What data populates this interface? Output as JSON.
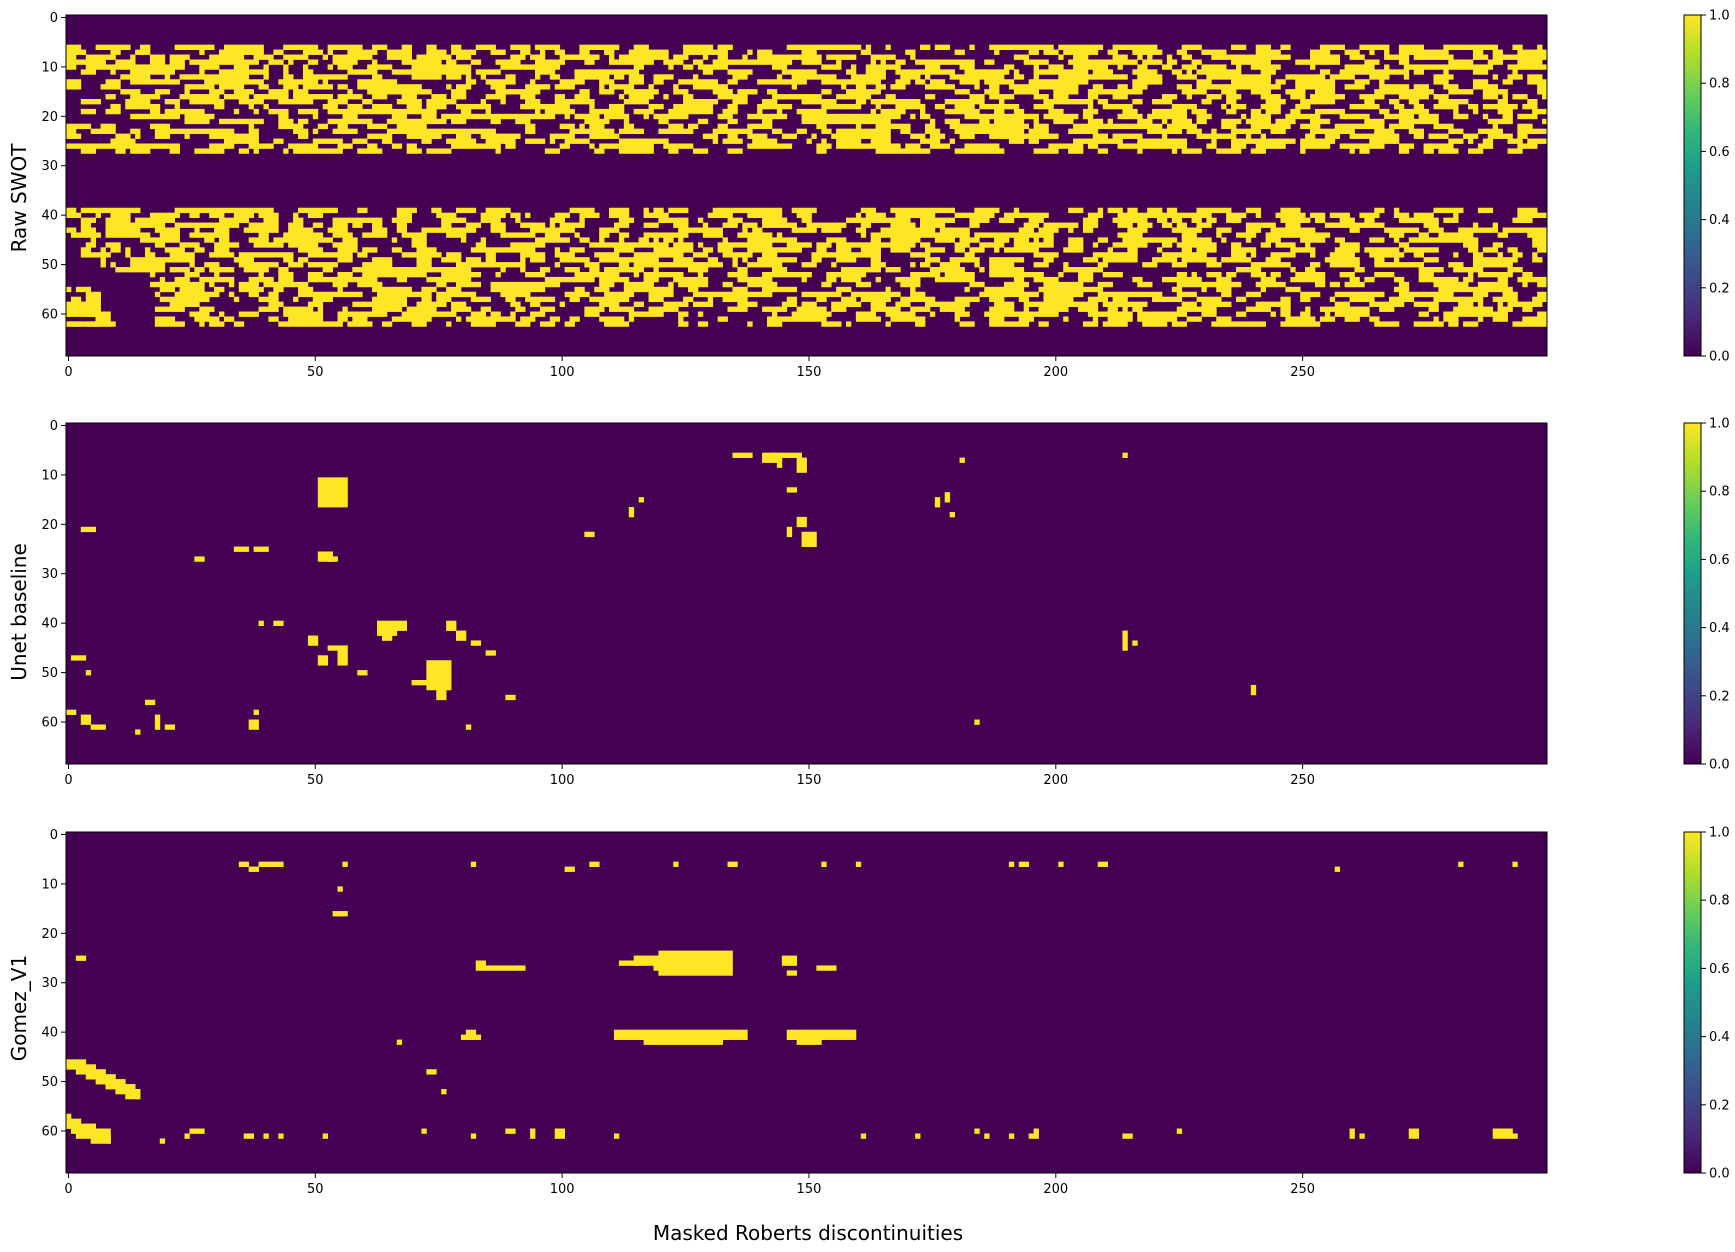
{
  "figure": {
    "xlabel": "Masked Roberts discontinuities"
  },
  "colors": {
    "low": "#440154",
    "high": "#fde725",
    "colormap": "viridis"
  },
  "chart_data": [
    {
      "type": "heatmap",
      "ylabel": "Raw SWOT",
      "xlim": [
        0,
        299
      ],
      "ylim": [
        69,
        0
      ],
      "xticks": [
        "0",
        "50",
        "100",
        "150",
        "200",
        "250"
      ],
      "yticks": [
        "0",
        "10",
        "20",
        "30",
        "40",
        "50",
        "60"
      ],
      "colorbar": {
        "range": [
          0.0,
          1.0
        ],
        "ticks": [
          "0.0",
          "0.2",
          "0.4",
          "0.6",
          "0.8",
          "1.0"
        ]
      },
      "values_description": "binary",
      "bands": [
        {
          "rows": [
            6,
            27
          ],
          "density": 0.55
        },
        {
          "rows": [
            39,
            62
          ],
          "density": 0.55
        }
      ],
      "blobs": [
        [
          0,
          58,
          6,
          3
        ],
        [
          6,
          60,
          3,
          2
        ],
        [
          0,
          62,
          8,
          1
        ]
      ],
      "blanks": [
        [
          0,
          47,
          3,
          8
        ],
        [
          3,
          49,
          4,
          6
        ],
        [
          7,
          52,
          10,
          10
        ],
        [
          12,
          55,
          6,
          7
        ],
        [
          0,
          58,
          1,
          1
        ]
      ]
    },
    {
      "type": "heatmap",
      "ylabel": "Unet baseline",
      "xlim": [
        0,
        299
      ],
      "ylim": [
        69,
        0
      ],
      "xticks": [
        "0",
        "50",
        "100",
        "150",
        "200",
        "250"
      ],
      "yticks": [
        "0",
        "10",
        "20",
        "30",
        "40",
        "50",
        "60"
      ],
      "colorbar": {
        "range": [
          0.0,
          1.0
        ],
        "ticks": [
          "0.0",
          "0.2",
          "0.4",
          "0.6",
          "0.8",
          "1.0"
        ]
      },
      "values_description": "binary",
      "blobs": [
        [
          51,
          11,
          6,
          6
        ],
        [
          52,
          13,
          2,
          1
        ],
        [
          135,
          6,
          4,
          1
        ],
        [
          141,
          6,
          3,
          2
        ],
        [
          143,
          6,
          6,
          1
        ],
        [
          144,
          7,
          1,
          2
        ],
        [
          148,
          7,
          2,
          3
        ],
        [
          146,
          13,
          2,
          1
        ],
        [
          181,
          7,
          1,
          1
        ],
        [
          214,
          6,
          1,
          1
        ],
        [
          178,
          14,
          1,
          2
        ],
        [
          176,
          15,
          1,
          2
        ],
        [
          179,
          18,
          1,
          1
        ],
        [
          116,
          15,
          1,
          1
        ],
        [
          114,
          17,
          1,
          2
        ],
        [
          148,
          19,
          2,
          2
        ],
        [
          146,
          21,
          1,
          2
        ],
        [
          149,
          22,
          3,
          3
        ],
        [
          3,
          21,
          3,
          1
        ],
        [
          105,
          22,
          2,
          1
        ],
        [
          34,
          25,
          3,
          1
        ],
        [
          38,
          25,
          3,
          1
        ],
        [
          51,
          26,
          3,
          2
        ],
        [
          26,
          27,
          2,
          1
        ],
        [
          53,
          27,
          2,
          1
        ],
        [
          39,
          40,
          1,
          1
        ],
        [
          42,
          40,
          2,
          1
        ],
        [
          63,
          40,
          4,
          3
        ],
        [
          64,
          43,
          2,
          1
        ],
        [
          67,
          40,
          2,
          2
        ],
        [
          77,
          40,
          2,
          2
        ],
        [
          79,
          42,
          2,
          2
        ],
        [
          82,
          44,
          2,
          1
        ],
        [
          49,
          43,
          2,
          2
        ],
        [
          53,
          45,
          4,
          1
        ],
        [
          51,
          47,
          2,
          2
        ],
        [
          55,
          46,
          2,
          3
        ],
        [
          85,
          46,
          2,
          1
        ],
        [
          214,
          42,
          1,
          4
        ],
        [
          216,
          44,
          1,
          1
        ],
        [
          1,
          47,
          3,
          1
        ],
        [
          4,
          50,
          1,
          1
        ],
        [
          59,
          50,
          2,
          1
        ],
        [
          73,
          48,
          5,
          6
        ],
        [
          70,
          52,
          4,
          1
        ],
        [
          75,
          54,
          2,
          2
        ],
        [
          89,
          55,
          2,
          1
        ],
        [
          240,
          53,
          1,
          2
        ],
        [
          16,
          56,
          2,
          1
        ],
        [
          38,
          58,
          1,
          1
        ],
        [
          37,
          60,
          2,
          2
        ],
        [
          0,
          58,
          2,
          1
        ],
        [
          3,
          59,
          2,
          2
        ],
        [
          5,
          61,
          3,
          1
        ],
        [
          14,
          62,
          1,
          1
        ],
        [
          18,
          59,
          1,
          3
        ],
        [
          20,
          61,
          2,
          1
        ],
        [
          81,
          61,
          1,
          1
        ],
        [
          184,
          60,
          1,
          1
        ]
      ]
    },
    {
      "type": "heatmap",
      "ylabel": "Gomez_V1",
      "xlim": [
        0,
        299
      ],
      "ylim": [
        69,
        0
      ],
      "xticks": [
        "0",
        "50",
        "100",
        "150",
        "200",
        "250"
      ],
      "yticks": [
        "0",
        "10",
        "20",
        "30",
        "40",
        "50",
        "60"
      ],
      "colorbar": {
        "range": [
          0.0,
          1.0
        ],
        "ticks": [
          "0.0",
          "0.2",
          "0.4",
          "0.6",
          "0.8",
          "1.0"
        ]
      },
      "values_description": "binary",
      "blobs": [
        [
          35,
          6,
          2,
          1
        ],
        [
          37,
          7,
          2,
          1
        ],
        [
          39,
          6,
          2,
          1
        ],
        [
          41,
          6,
          3,
          1
        ],
        [
          56,
          6,
          1,
          1
        ],
        [
          82,
          6,
          1,
          1
        ],
        [
          101,
          7,
          2,
          1
        ],
        [
          106,
          6,
          2,
          1
        ],
        [
          123,
          6,
          1,
          1
        ],
        [
          134,
          6,
          2,
          1
        ],
        [
          153,
          6,
          1,
          1
        ],
        [
          160,
          6,
          1,
          1
        ],
        [
          191,
          6,
          1,
          1
        ],
        [
          193,
          6,
          2,
          1
        ],
        [
          201,
          6,
          1,
          1
        ],
        [
          209,
          6,
          2,
          1
        ],
        [
          257,
          7,
          1,
          1
        ],
        [
          282,
          6,
          1,
          1
        ],
        [
          293,
          6,
          1,
          1
        ],
        [
          55,
          11,
          1,
          1
        ],
        [
          54,
          16,
          3,
          1
        ],
        [
          2,
          25,
          2,
          1
        ],
        [
          83,
          26,
          2,
          2
        ],
        [
          85,
          27,
          8,
          1
        ],
        [
          112,
          26,
          4,
          1
        ],
        [
          115,
          25,
          6,
          2
        ],
        [
          120,
          24,
          15,
          5
        ],
        [
          119,
          27,
          2,
          1
        ],
        [
          145,
          25,
          3,
          2
        ],
        [
          146,
          28,
          2,
          1
        ],
        [
          152,
          27,
          4,
          1
        ],
        [
          81,
          40,
          2,
          1
        ],
        [
          80,
          41,
          4,
          1
        ],
        [
          111,
          40,
          27,
          2
        ],
        [
          117,
          42,
          16,
          1
        ],
        [
          146,
          40,
          14,
          2
        ],
        [
          148,
          42,
          5,
          1
        ],
        [
          67,
          42,
          1,
          1
        ],
        [
          73,
          48,
          2,
          1
        ],
        [
          76,
          52,
          1,
          1
        ],
        [
          0,
          46,
          4,
          2
        ],
        [
          2,
          47,
          4,
          2
        ],
        [
          4,
          48,
          4,
          2
        ],
        [
          6,
          49,
          4,
          2
        ],
        [
          8,
          50,
          4,
          2
        ],
        [
          10,
          51,
          4,
          2
        ],
        [
          12,
          52,
          3,
          2
        ],
        [
          14,
          53,
          1,
          1
        ],
        [
          0,
          57,
          1,
          3
        ],
        [
          1,
          58,
          2,
          3
        ],
        [
          2,
          59,
          4,
          3
        ],
        [
          5,
          60,
          4,
          3
        ],
        [
          8,
          61,
          1,
          2
        ],
        [
          19,
          62,
          1,
          1
        ],
        [
          24,
          61,
          1,
          1
        ],
        [
          25,
          60,
          3,
          1
        ],
        [
          36,
          61,
          2,
          1
        ],
        [
          40,
          61,
          1,
          1
        ],
        [
          43,
          61,
          1,
          1
        ],
        [
          52,
          61,
          1,
          1
        ],
        [
          72,
          60,
          1,
          1
        ],
        [
          82,
          61,
          1,
          1
        ],
        [
          89,
          60,
          2,
          1
        ],
        [
          94,
          60,
          1,
          2
        ],
        [
          99,
          60,
          2,
          2
        ],
        [
          111,
          61,
          1,
          1
        ],
        [
          161,
          61,
          1,
          1
        ],
        [
          172,
          61,
          1,
          1
        ],
        [
          184,
          60,
          1,
          1
        ],
        [
          186,
          61,
          1,
          1
        ],
        [
          191,
          61,
          1,
          1
        ],
        [
          195,
          61,
          1,
          1
        ],
        [
          196,
          60,
          1,
          2
        ],
        [
          214,
          61,
          2,
          1
        ],
        [
          225,
          60,
          1,
          1
        ],
        [
          260,
          60,
          1,
          2
        ],
        [
          262,
          61,
          1,
          1
        ],
        [
          272,
          60,
          2,
          2
        ],
        [
          289,
          60,
          4,
          2
        ],
        [
          293,
          61,
          1,
          1
        ]
      ]
    }
  ]
}
